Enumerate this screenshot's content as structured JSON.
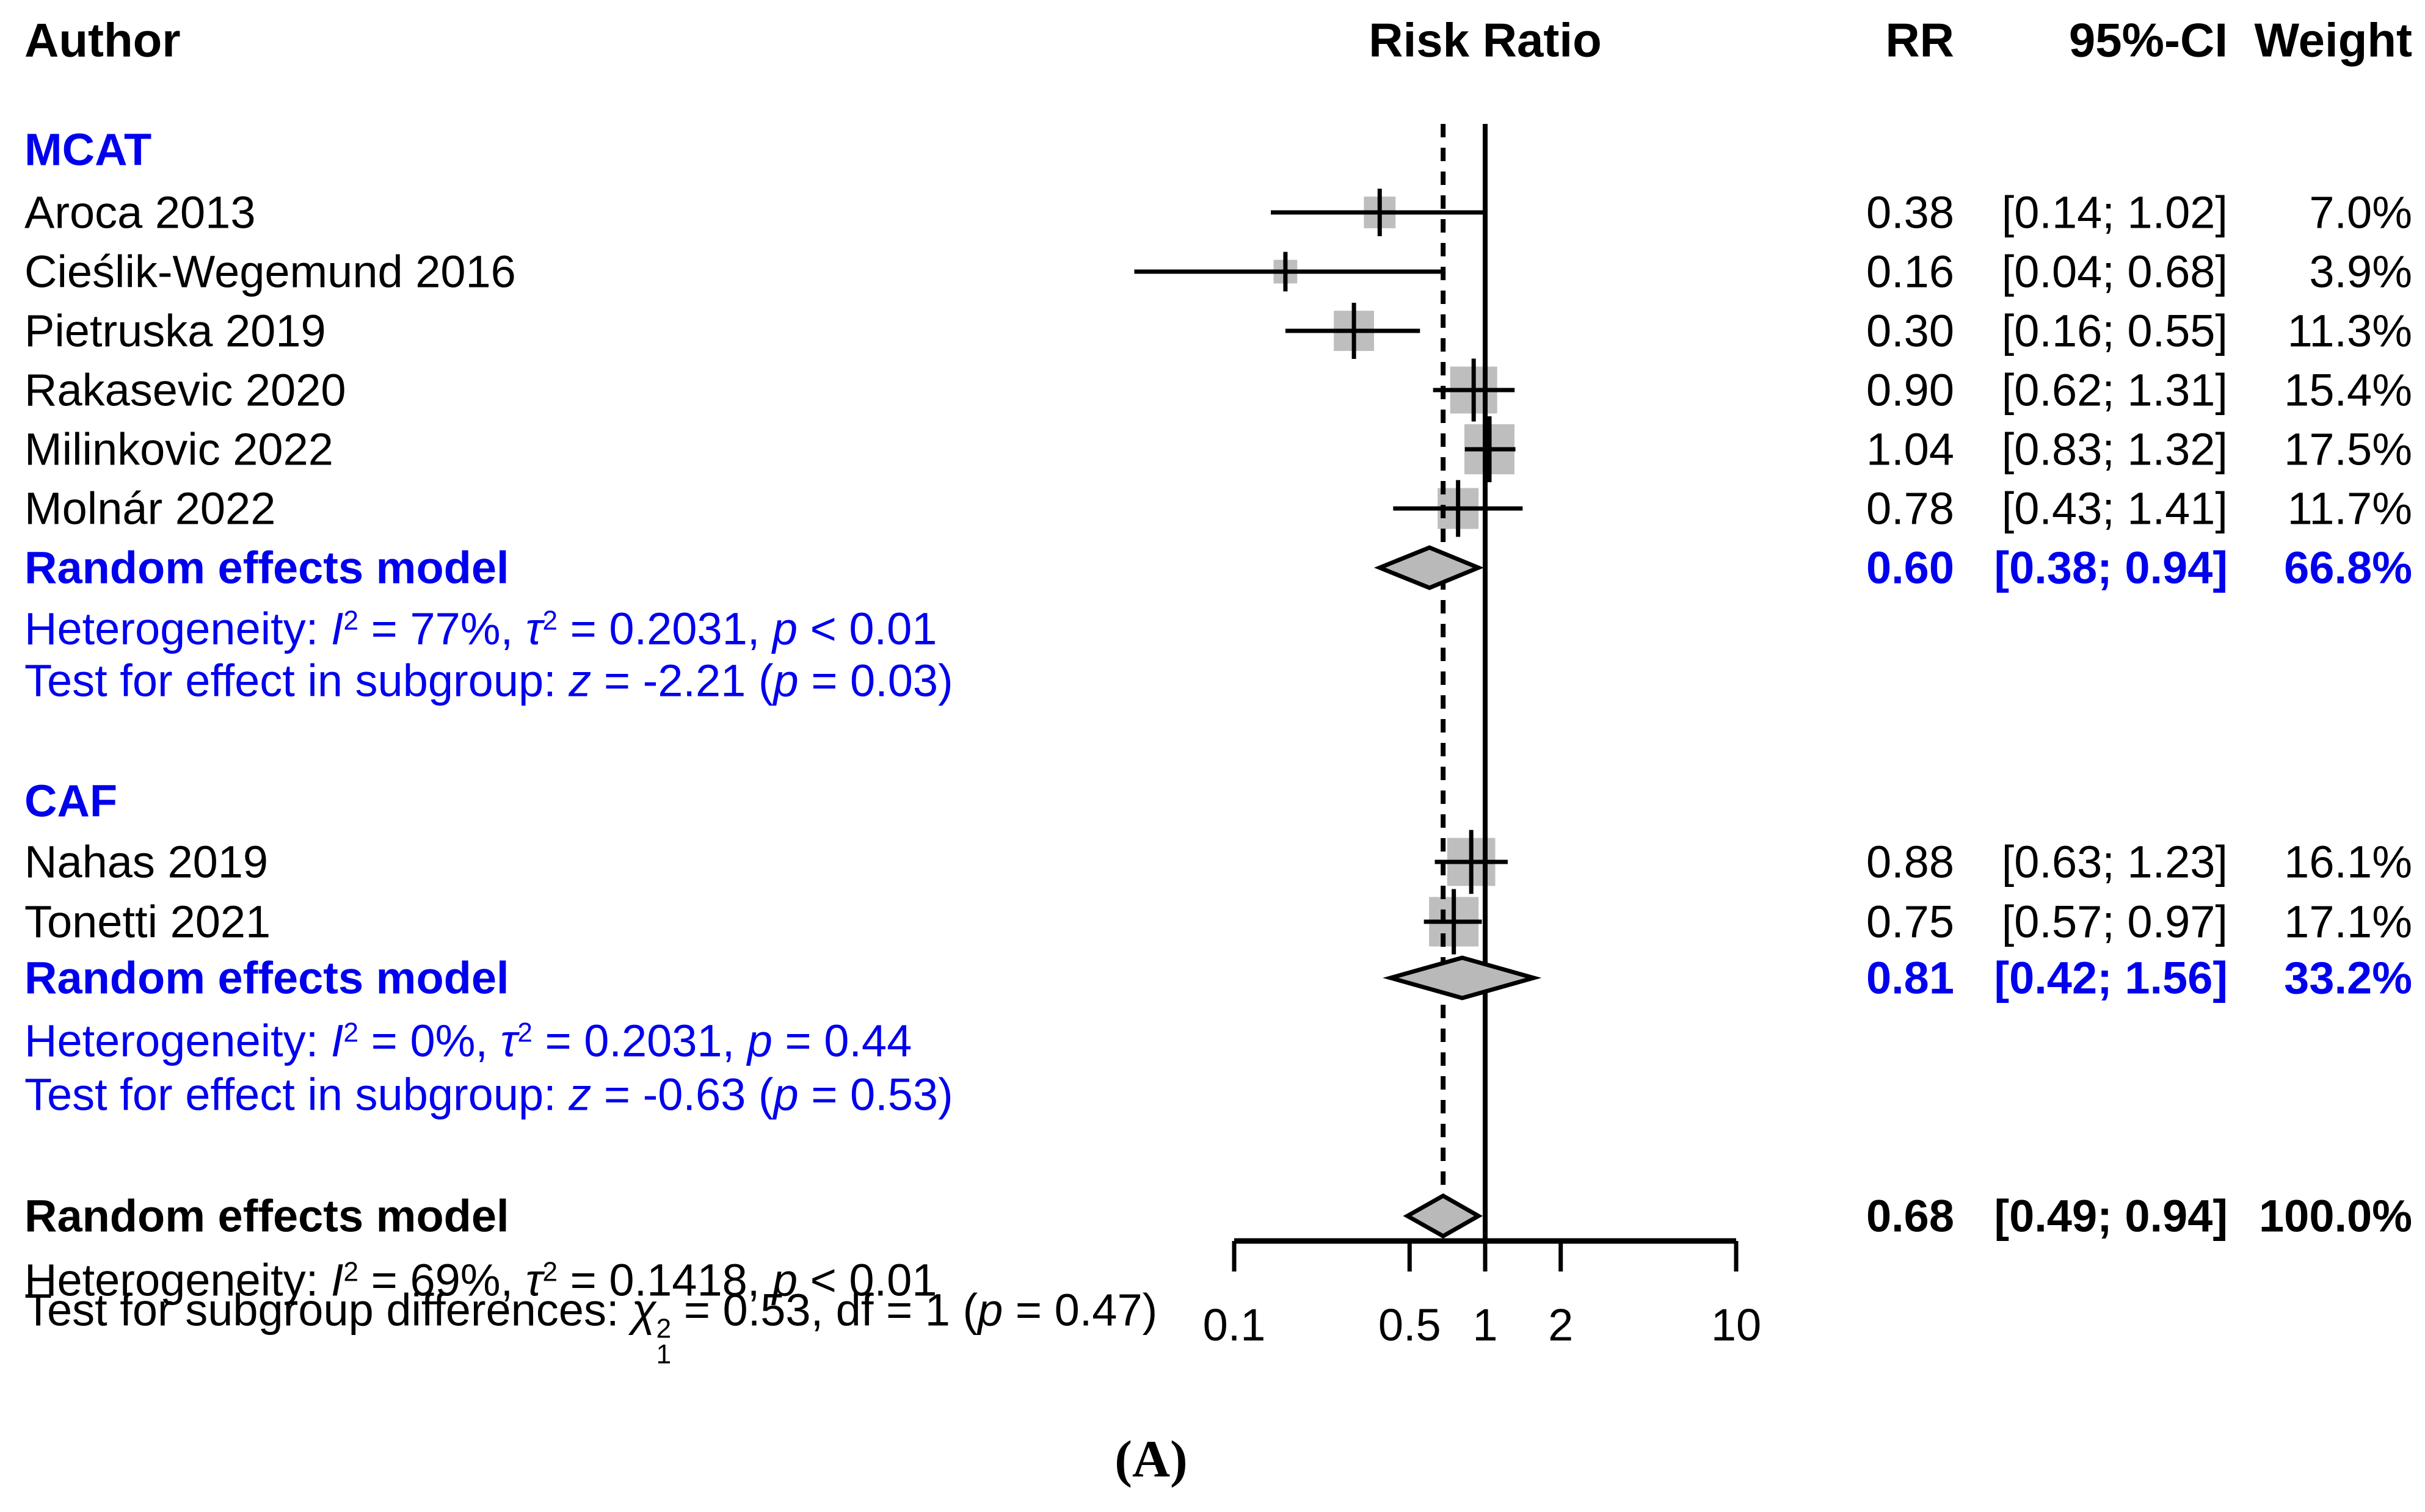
{
  "palette": {
    "blue": "#0000ee",
    "text": "#000000",
    "line": "#000000",
    "square_fill": "#bebebe",
    "diamond_fill": "#b9b9b9",
    "background": "#ffffff"
  },
  "header": {
    "author": "Author",
    "risk_ratio": "Risk Ratio",
    "rr": "RR",
    "ci": "95%-CI",
    "weight": "Weight"
  },
  "caption": "(A)",
  "chart_data": {
    "type": "forest",
    "effect_measure": "Risk Ratio",
    "x_axis": {
      "scale": "log",
      "ticks": [
        0.1,
        0.5,
        1,
        2,
        10
      ],
      "tick_labels": [
        "0.1",
        "0.5",
        "1",
        "2",
        "10"
      ],
      "range": [
        0.1,
        10
      ],
      "reference_line": 1,
      "overall_dashed_line": 0.68
    },
    "groups": [
      {
        "name": "MCAT",
        "studies": [
          {
            "author": "Aroca 2013",
            "rr": 0.38,
            "ci_low": 0.14,
            "ci_high": 1.02,
            "rr_text": "0.38",
            "ci_text": "[0.14; 1.02]",
            "weight": 7.0,
            "weight_text": "7.0%"
          },
          {
            "author": "Cieślik-Wegemund 2016",
            "rr": 0.16,
            "ci_low": 0.04,
            "ci_high": 0.68,
            "rr_text": "0.16",
            "ci_text": "[0.04; 0.68]",
            "weight": 3.9,
            "weight_text": "3.9%"
          },
          {
            "author": "Pietruska 2019",
            "rr": 0.3,
            "ci_low": 0.16,
            "ci_high": 0.55,
            "rr_text": "0.30",
            "ci_text": "[0.16; 0.55]",
            "weight": 11.3,
            "weight_text": "11.3%"
          },
          {
            "author": "Rakasevic 2020",
            "rr": 0.9,
            "ci_low": 0.62,
            "ci_high": 1.31,
            "rr_text": "0.90",
            "ci_text": "[0.62; 1.31]",
            "weight": 15.4,
            "weight_text": "15.4%"
          },
          {
            "author": "Milinkovic 2022",
            "rr": 1.04,
            "ci_low": 0.83,
            "ci_high": 1.32,
            "rr_text": "1.04",
            "ci_text": "[0.83; 1.32]",
            "weight": 17.5,
            "weight_text": "17.5%"
          },
          {
            "author": "Molnár 2022",
            "rr": 0.78,
            "ci_low": 0.43,
            "ci_high": 1.41,
            "rr_text": "0.78",
            "ci_text": "[0.43; 1.41]",
            "weight": 11.7,
            "weight_text": "11.7%"
          }
        ],
        "summary": {
          "label": "Random effects model",
          "rr": 0.6,
          "ci_low": 0.38,
          "ci_high": 0.94,
          "rr_text": "0.60",
          "ci_text": "[0.38; 0.94]",
          "weight_text": "66.8%"
        },
        "heterogeneity": [
          {
            "t": "Heterogeneity: "
          },
          {
            "t": "I",
            "i": true
          },
          {
            "t": "2",
            "sup": true
          },
          {
            "t": " = 77%, "
          },
          {
            "t": "τ",
            "i": true
          },
          {
            "t": "2",
            "sup": true
          },
          {
            "t": " = 0.2031, "
          },
          {
            "t": "p",
            "i": true
          },
          {
            "t": " < 0.01"
          }
        ],
        "test": [
          {
            "t": "Test for effect in subgroup: "
          },
          {
            "t": "z",
            "i": true
          },
          {
            "t": " = -2.21 ("
          },
          {
            "t": "p",
            "i": true
          },
          {
            "t": " = 0.03)"
          }
        ]
      },
      {
        "name": "CAF",
        "studies": [
          {
            "author": "Nahas 2019",
            "rr": 0.88,
            "ci_low": 0.63,
            "ci_high": 1.23,
            "rr_text": "0.88",
            "ci_text": "[0.63; 1.23]",
            "weight": 16.1,
            "weight_text": "16.1%"
          },
          {
            "author": "Tonetti 2021",
            "rr": 0.75,
            "ci_low": 0.57,
            "ci_high": 0.97,
            "rr_text": "0.75",
            "ci_text": "[0.57; 0.97]",
            "weight": 17.1,
            "weight_text": "17.1%"
          }
        ],
        "summary": {
          "label": "Random effects model",
          "rr": 0.81,
          "ci_low": 0.42,
          "ci_high": 1.56,
          "rr_text": "0.81",
          "ci_text": "[0.42; 1.56]",
          "weight_text": "33.2%"
        },
        "heterogeneity": [
          {
            "t": "Heterogeneity: "
          },
          {
            "t": "I",
            "i": true
          },
          {
            "t": "2",
            "sup": true
          },
          {
            "t": " = 0%, "
          },
          {
            "t": "τ",
            "i": true
          },
          {
            "t": "2",
            "sup": true
          },
          {
            "t": " = 0.2031, "
          },
          {
            "t": "p",
            "i": true
          },
          {
            "t": " = 0.44"
          }
        ],
        "test": [
          {
            "t": "Test for effect in subgroup: "
          },
          {
            "t": "z",
            "i": true
          },
          {
            "t": " = -0.63 ("
          },
          {
            "t": "p",
            "i": true
          },
          {
            "t": " = 0.53)"
          }
        ]
      }
    ],
    "overall": {
      "summary": {
        "label": "Random effects model",
        "rr": 0.68,
        "ci_low": 0.49,
        "ci_high": 0.94,
        "rr_text": "0.68",
        "ci_text": "[0.49; 0.94]",
        "weight_text": "100.0%"
      },
      "heterogeneity": [
        {
          "t": "Heterogeneity: "
        },
        {
          "t": "I",
          "i": true
        },
        {
          "t": "2",
          "sup": true
        },
        {
          "t": " = 69%, "
        },
        {
          "t": "τ",
          "i": true
        },
        {
          "t": "2",
          "sup": true
        },
        {
          "t": " = 0.1418, "
        },
        {
          "t": "p",
          "i": true
        },
        {
          "t": " < 0.01"
        }
      ],
      "test": [
        {
          "t": "Test for subgroup differences: "
        },
        {
          "t": "χ",
          "i": true
        },
        {
          "stack": {
            "sup": "2",
            "sub": "1"
          }
        },
        {
          "t": " = 0.53, df = 1 ("
        },
        {
          "t": "p",
          "i": true
        },
        {
          "t": " = 0.47)"
        }
      ]
    }
  }
}
